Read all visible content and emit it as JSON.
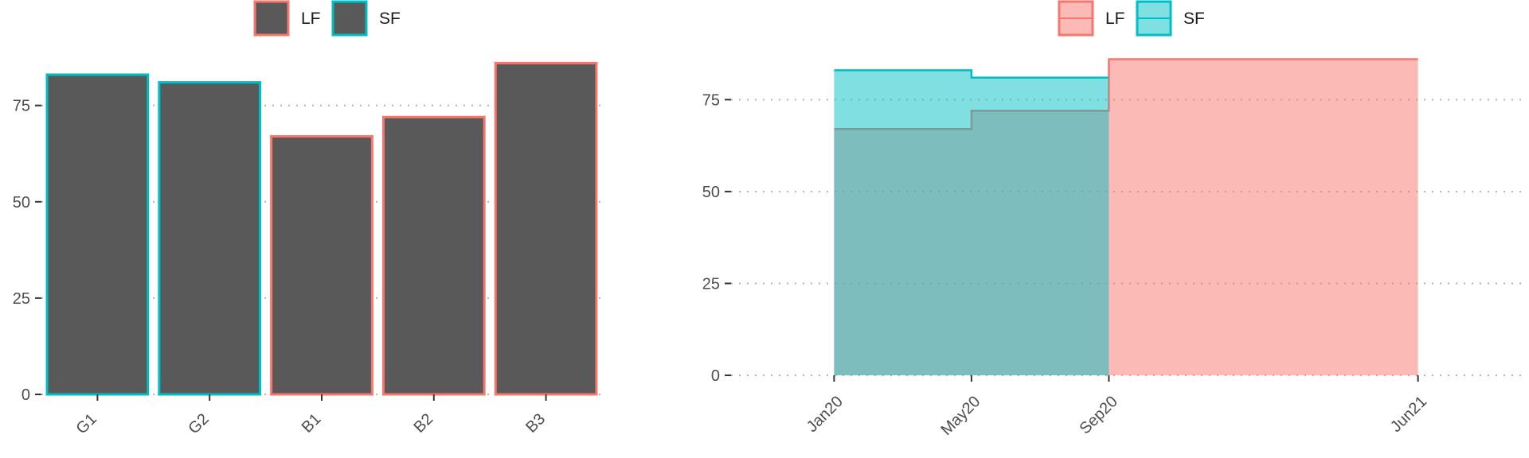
{
  "colors": {
    "LF": "#F8766D",
    "SF": "#00BFC4",
    "bar_fill": "#595959"
  },
  "chart_data": [
    {
      "type": "bar",
      "categories": [
        "G1",
        "G2",
        "B1",
        "B2",
        "B3"
      ],
      "values": [
        83,
        81,
        67,
        72,
        86
      ],
      "outline_group": [
        "SF",
        "SF",
        "LF",
        "LF",
        "LF"
      ],
      "legend": [
        {
          "label": "LF",
          "key": "LF"
        },
        {
          "label": "SF",
          "key": "SF"
        }
      ],
      "legend_position": "top",
      "ylim": [
        0,
        90
      ],
      "yticks": [
        0,
        25,
        50,
        75
      ],
      "ytick_labels": [
        "0",
        "25",
        "50",
        "75"
      ],
      "grid": "horizontal dotted",
      "title": "",
      "xlabel": "",
      "ylabel": ""
    },
    {
      "type": "area",
      "step": true,
      "legend": [
        {
          "label": "LF",
          "key": "LF"
        },
        {
          "label": "SF",
          "key": "SF"
        }
      ],
      "legend_position": "top",
      "series": [
        {
          "name": "LF",
          "x": [
            "2020-01",
            "2020-05",
            "2020-09",
            "2021-06"
          ],
          "values": [
            67,
            72,
            86,
            86
          ]
        },
        {
          "name": "SF",
          "x": [
            "2020-01",
            "2020-05",
            "2020-09"
          ],
          "values": [
            83,
            81,
            81
          ]
        }
      ],
      "xticks": [
        "2020-01",
        "2020-05",
        "2020-09",
        "2021-06"
      ],
      "xtick_labels": [
        "Jan20",
        "May20",
        "Sep20",
        "Jun21"
      ],
      "xlim": [
        "2019-10",
        "2021-09"
      ],
      "ylim": [
        0,
        90
      ],
      "yticks": [
        0,
        25,
        50,
        75
      ],
      "ytick_labels": [
        "0",
        "25",
        "50",
        "75"
      ],
      "grid": "horizontal dotted",
      "title": "",
      "xlabel": "",
      "ylabel": ""
    }
  ]
}
